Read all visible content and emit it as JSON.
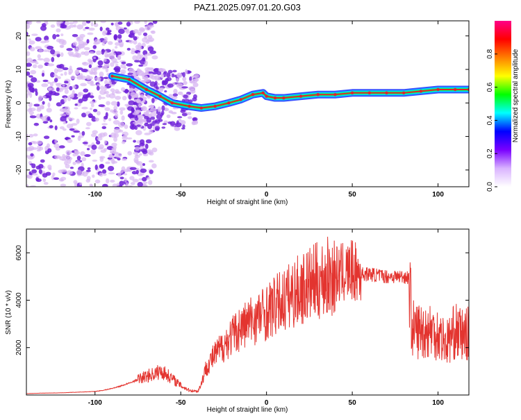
{
  "title": "PAZ1.2025.097.01.20.G03",
  "colors": {
    "signal": "#e3342f",
    "frame": "#000000",
    "ridge_high": "#e0242c",
    "ridge_mid": "#00ff66",
    "ridge_low": "#2040ff",
    "scatter": "#6d1fd8",
    "scatter_light": "#d8b8f2"
  },
  "chart_data": [
    {
      "type": "heatmap",
      "xlabel": "Height of straight line (km)",
      "ylabel": "Frequency (Hz)",
      "xlim": [
        -140,
        118
      ],
      "ylim": [
        -25,
        24.5
      ],
      "x_ticks": [
        -100,
        -50,
        0,
        50,
        100
      ],
      "y_ticks": [
        -20,
        -10,
        0,
        10,
        20
      ],
      "grid": false,
      "ridge": {
        "x": [
          -90,
          -80,
          -70,
          -62,
          -55,
          -45,
          -38,
          -30,
          -22,
          -15,
          -8,
          -2,
          0,
          5,
          10,
          20,
          30,
          40,
          50,
          60,
          70,
          80,
          90,
          100,
          110,
          118
        ],
        "y": [
          8,
          7,
          4,
          2,
          0,
          -1,
          -1.5,
          -1,
          0,
          1,
          2.5,
          3,
          2,
          1.5,
          1.5,
          2,
          2.5,
          2.5,
          3,
          3,
          3,
          3,
          3.5,
          4,
          4,
          4
        ]
      },
      "colorbar": {
        "label": "Normalized spectral amplitude",
        "ticks": [
          0.0,
          0.2,
          0.4,
          0.6,
          0.8
        ],
        "tick_labels": [
          "0.0",
          "0.2",
          "0.4",
          "0.6",
          "0.8"
        ],
        "range": [
          0,
          1
        ],
        "colors": [
          "#ffffff",
          "#d9b3ff",
          "#7a00ff",
          "#0000ff",
          "#00ffff",
          "#00ff00",
          "#ffff00",
          "#ff8000",
          "#ff0000",
          "#ff0088"
        ]
      }
    },
    {
      "type": "line",
      "xlabel": "Height of straight line (km)",
      "ylabel": "SNR (10 * v/v)",
      "xlim": [
        -140,
        118
      ],
      "ylim": [
        0,
        7000
      ],
      "x_ticks": [
        -100,
        -50,
        0,
        50,
        100
      ],
      "y_ticks": [
        2000,
        4000,
        6000
      ],
      "grid": false,
      "series": [
        {
          "x": [
            -140,
            -130,
            -120,
            -110,
            -100,
            -95,
            -90,
            -85,
            -80,
            -75,
            -70,
            -65,
            -62,
            -60,
            -58,
            -55,
            -50,
            -45,
            -40,
            -38,
            -35,
            -30,
            -25,
            -20,
            -15,
            -10,
            -5,
            0,
            5,
            10,
            15,
            20,
            25,
            30,
            35,
            40,
            45,
            48,
            50,
            52,
            55,
            60,
            65,
            70,
            75,
            80,
            83,
            85,
            90,
            95,
            100,
            105,
            110,
            115,
            118
          ],
          "y": [
            60,
            80,
            90,
            120,
            150,
            200,
            280,
            380,
            500,
            650,
            800,
            900,
            1000,
            950,
            850,
            700,
            400,
            200,
            150,
            500,
            1200,
            1700,
            2100,
            2500,
            2850,
            3100,
            3300,
            3500,
            3750,
            4000,
            4250,
            4450,
            4650,
            4800,
            4950,
            5050,
            5150,
            5200,
            5250,
            5150,
            5100,
            5100,
            5050,
            5000,
            5000,
            5000,
            4950,
            2800,
            2700,
            2750,
            2600,
            2200,
            2700,
            2500,
            2600
          ]
        }
      ]
    }
  ]
}
